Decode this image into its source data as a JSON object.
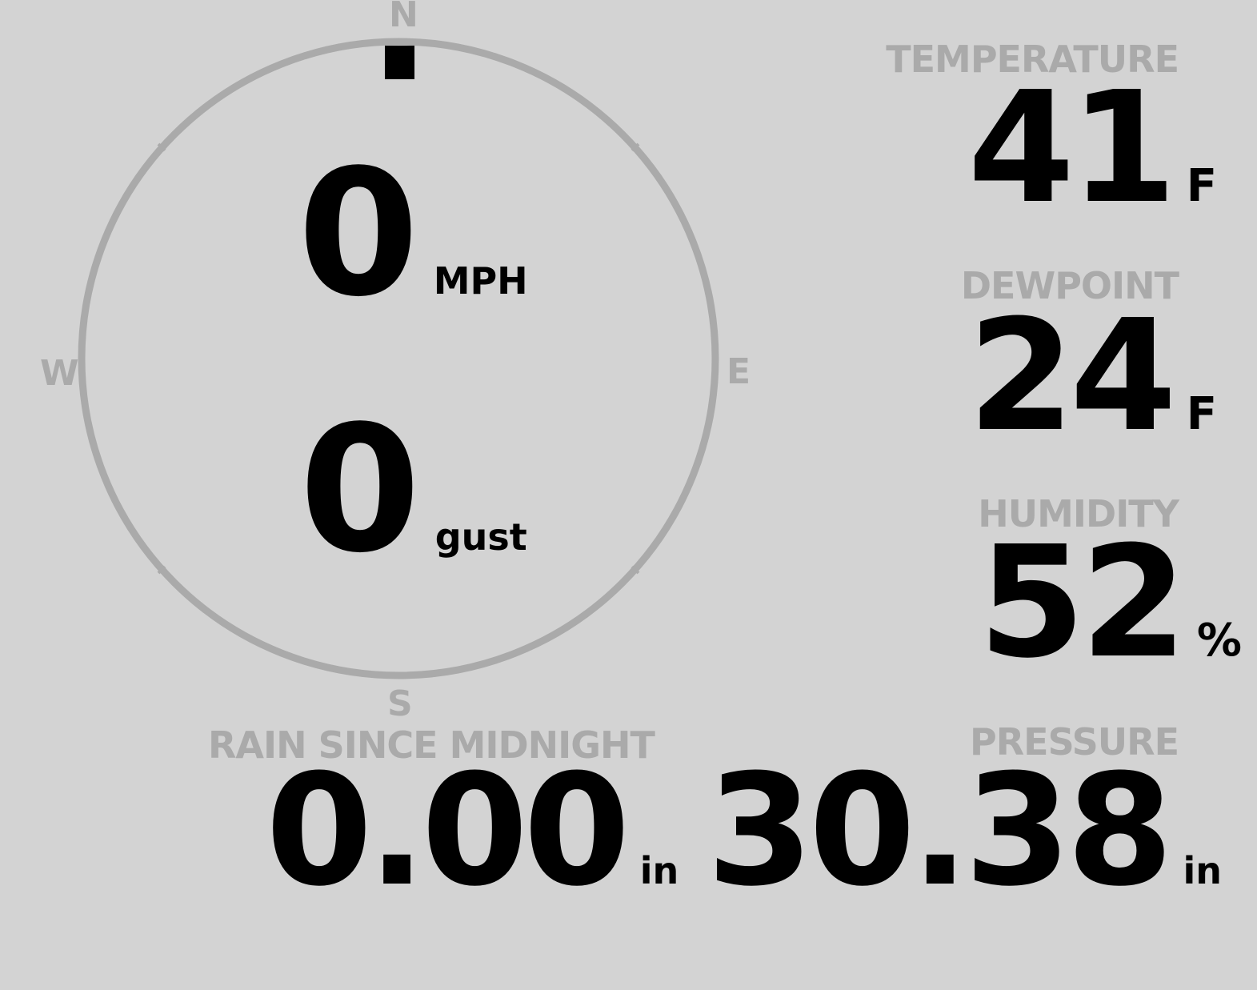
{
  "compass": {
    "n": "N",
    "s": "S",
    "e": "E",
    "w": "W",
    "direction_deg": 0,
    "ring_color": "#aaaaaa",
    "marker_color": "#000000"
  },
  "wind": {
    "speed": "0",
    "speed_unit": "MPH",
    "gust": "0",
    "gust_unit": "gust"
  },
  "temperature": {
    "label": "TEMPERATURE",
    "value": "41",
    "unit": "F"
  },
  "dewpoint": {
    "label": "DEWPOINT",
    "value": "24",
    "unit": "F"
  },
  "humidity": {
    "label": "HUMIDITY",
    "value": "52",
    "unit": "%"
  },
  "pressure": {
    "label": "PRESSURE",
    "value": "30.38",
    "unit": "in"
  },
  "rain": {
    "label": "RAIN SINCE MIDNIGHT",
    "value": "0.00",
    "unit": "in"
  }
}
